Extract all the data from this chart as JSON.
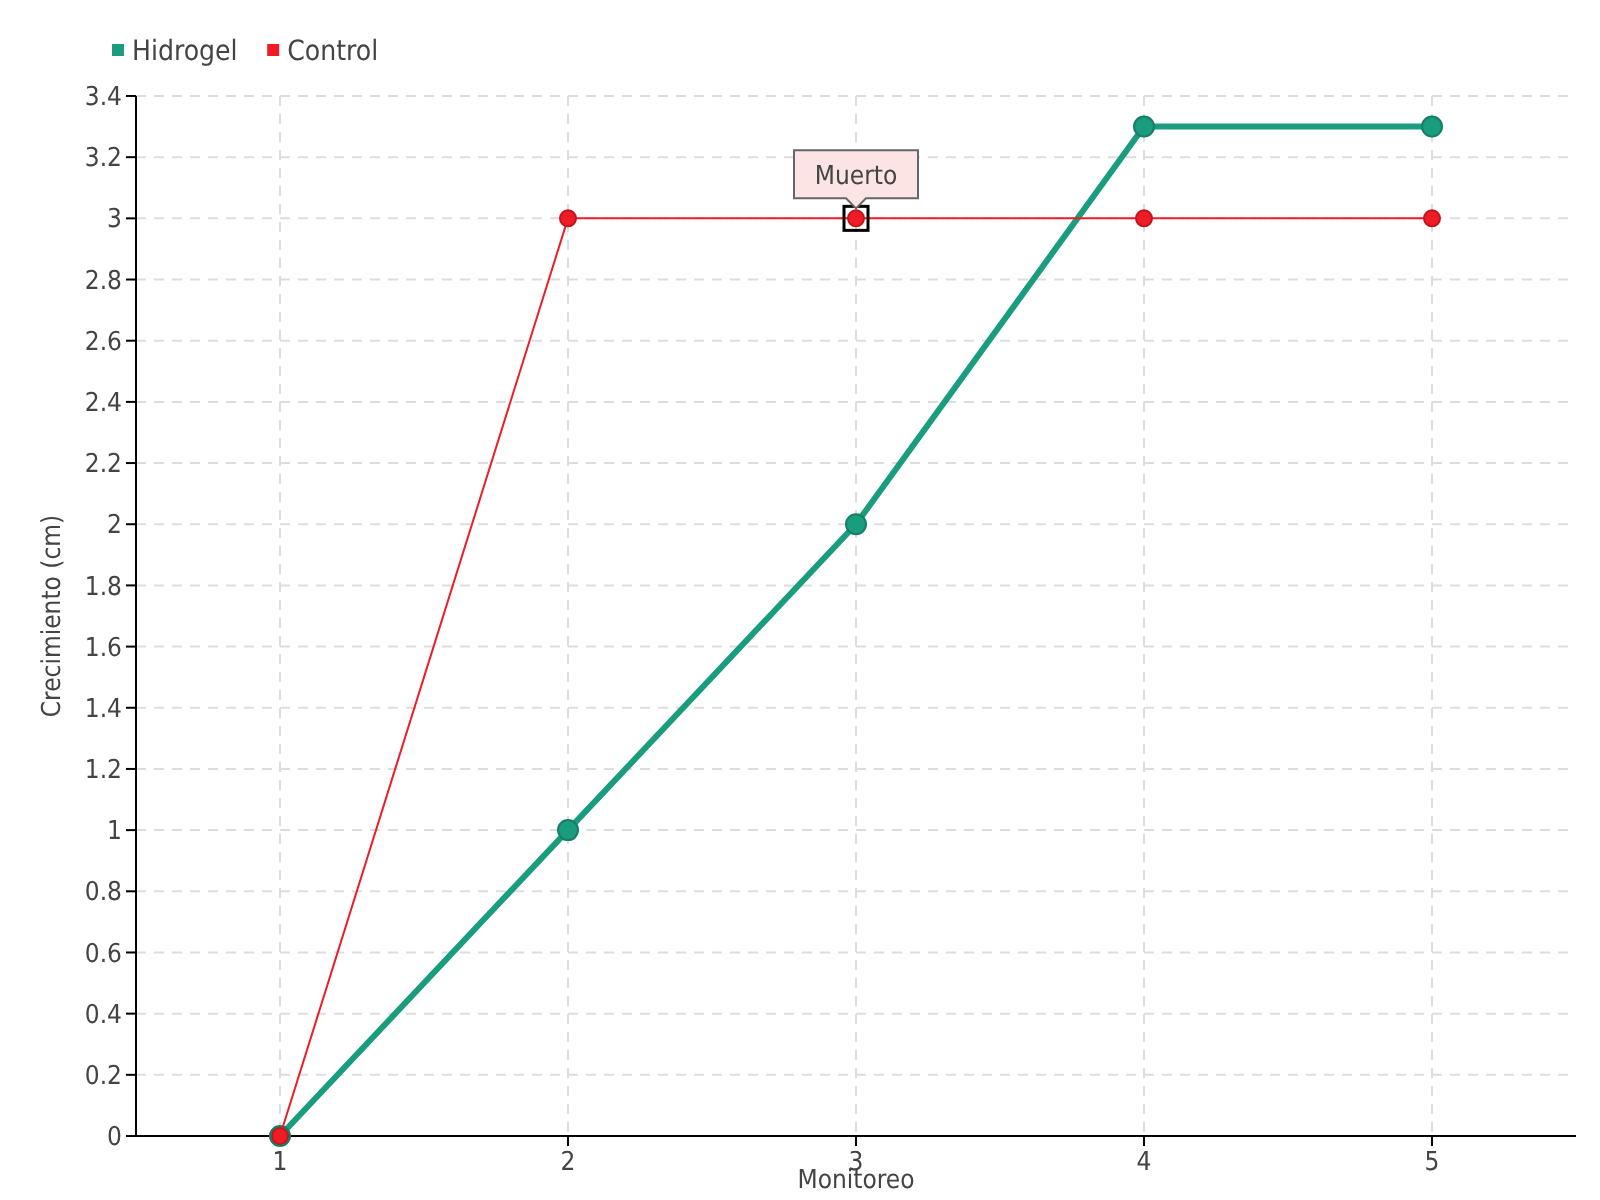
{
  "chart_data": {
    "type": "line",
    "xlabel": "Monitoreo",
    "ylabel": "Crecimiento (cm)",
    "x": [
      1,
      2,
      3,
      4,
      5
    ],
    "xlim": [
      0.5,
      5.5
    ],
    "xticks": [
      1,
      2,
      3,
      4,
      5
    ],
    "ylim": [
      0,
      3.4
    ],
    "yticks": [
      0,
      0.2,
      0.4,
      0.6,
      0.8,
      1,
      1.2,
      1.4,
      1.6,
      1.8,
      2,
      2.2,
      2.4,
      2.6,
      2.8,
      3,
      3.2,
      3.4
    ],
    "series": [
      {
        "name": "Hidrogel",
        "color": "#1a9c7f",
        "values": [
          0,
          1,
          2,
          3.3,
          3.3
        ]
      },
      {
        "name": "Control",
        "color": "#ee1c25",
        "values": [
          0,
          3,
          3,
          3,
          3
        ]
      }
    ],
    "annotations": [
      {
        "text": "Muerto",
        "x": 3,
        "y": 3
      }
    ],
    "grid": true,
    "legend": "top left",
    "marker": "circle",
    "line_style": "solid"
  }
}
